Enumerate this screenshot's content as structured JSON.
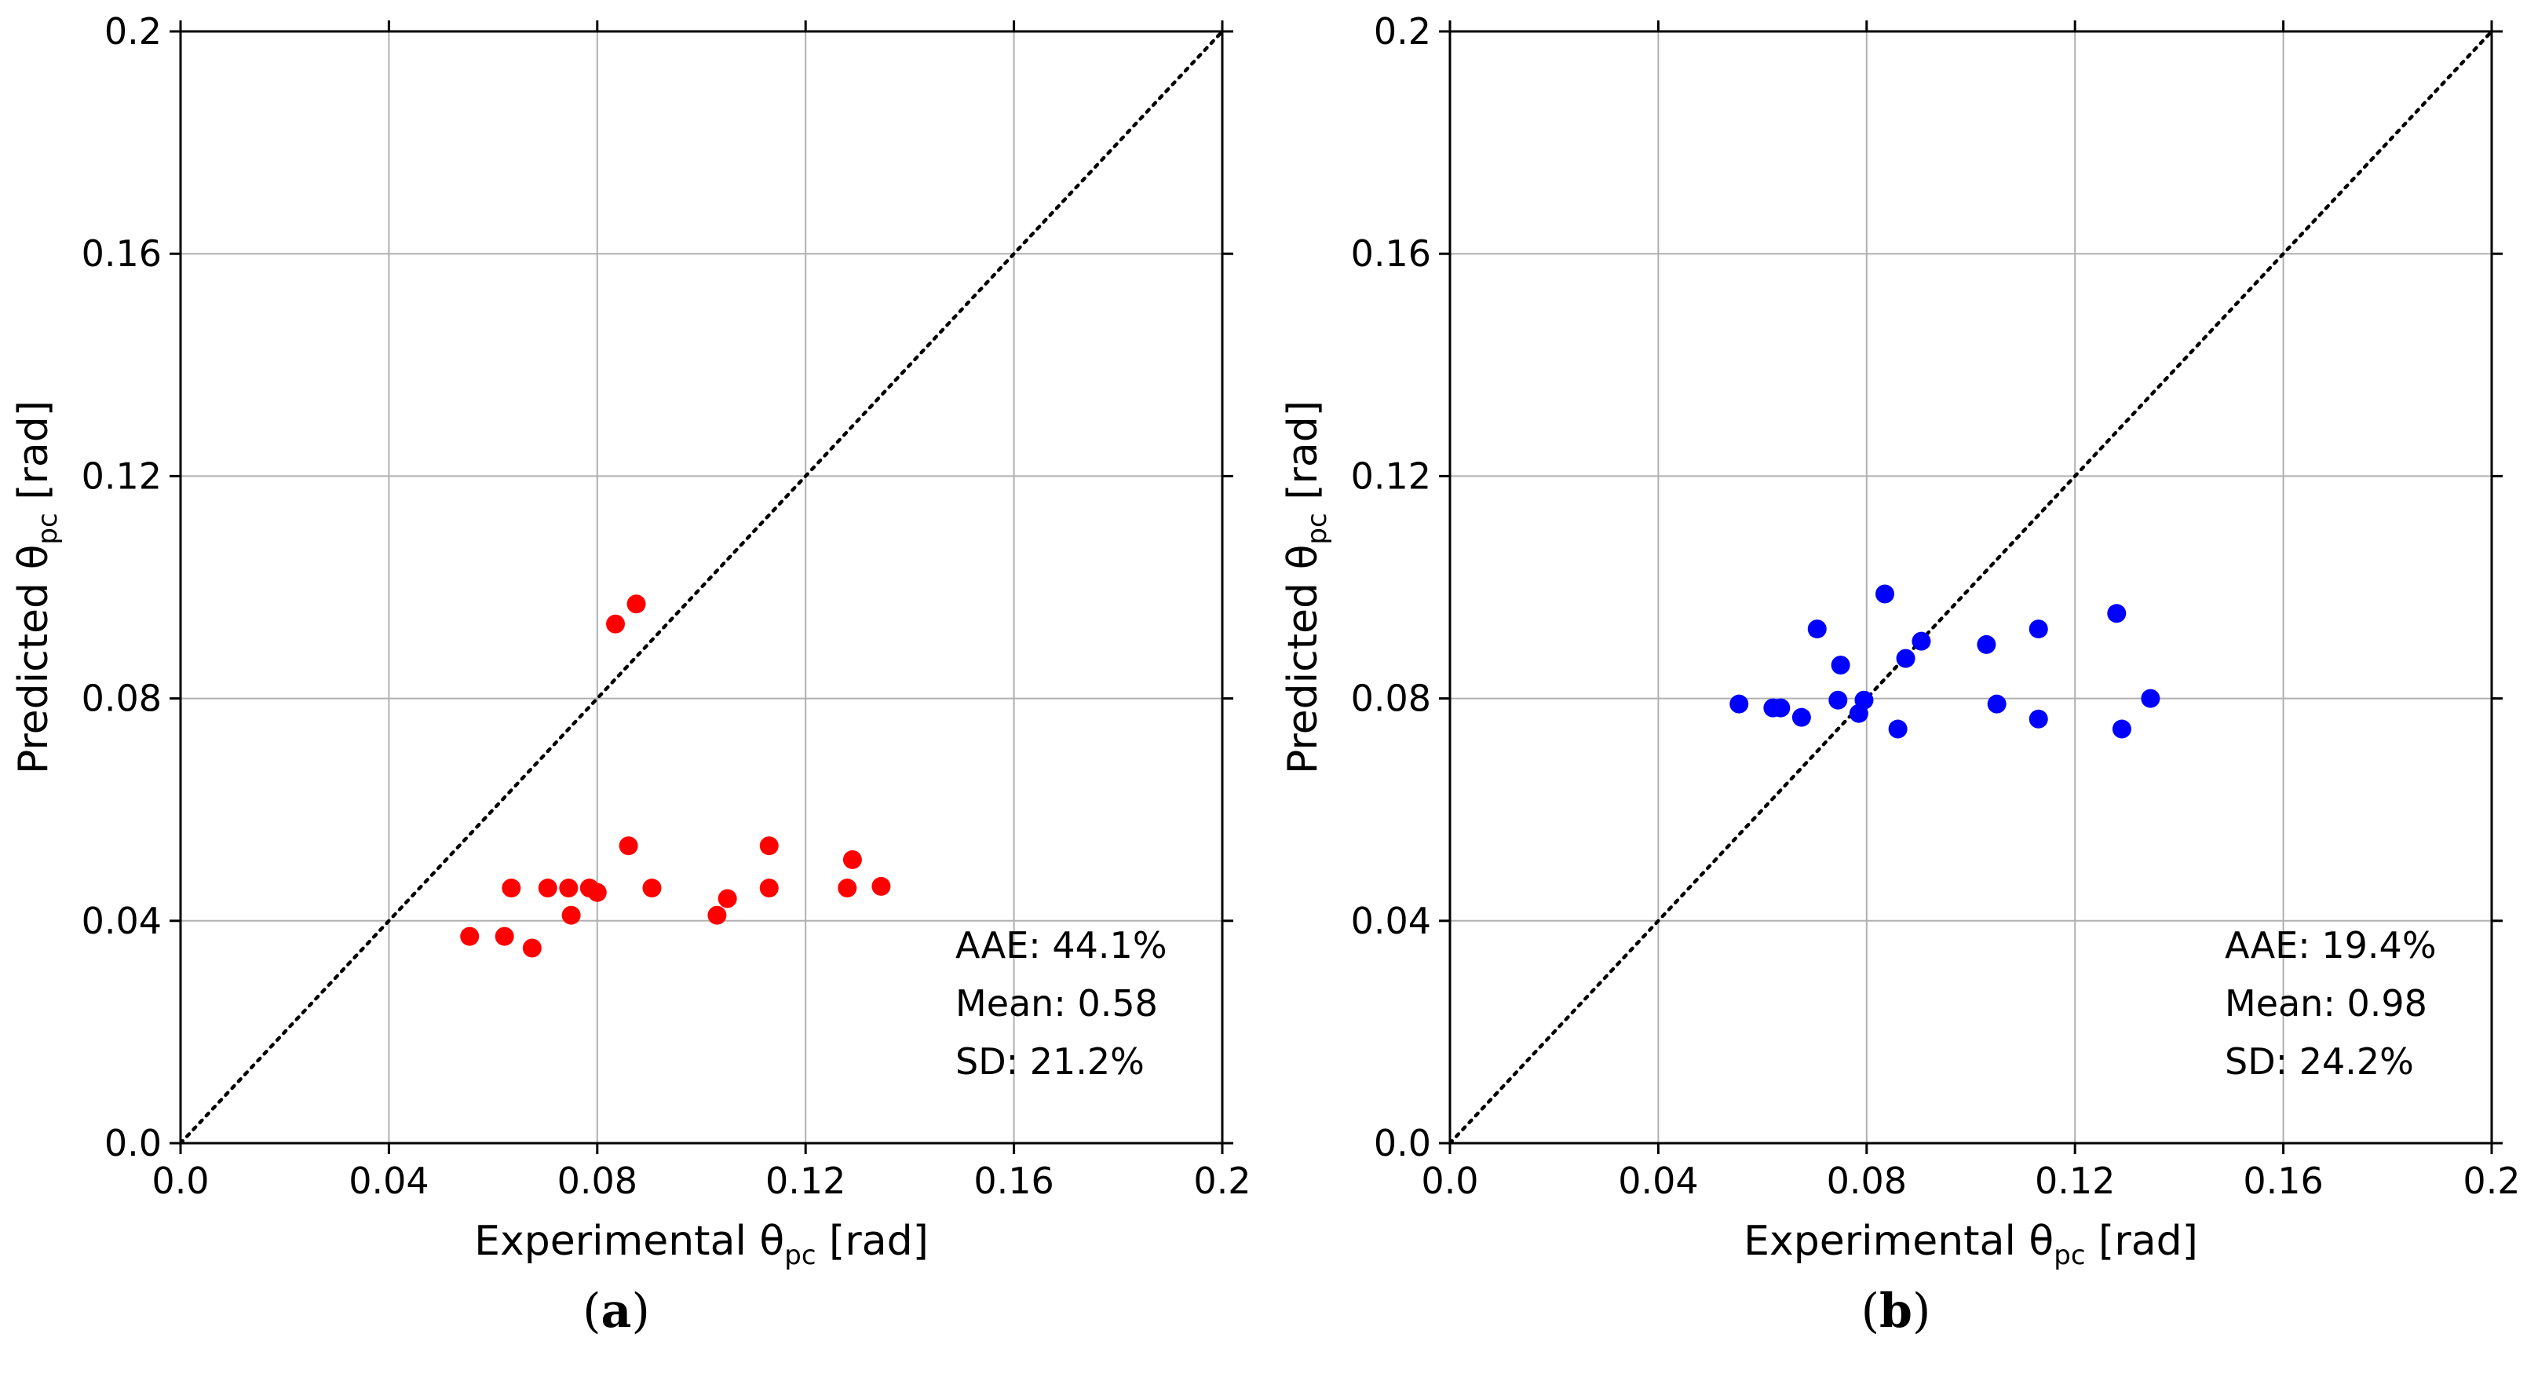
{
  "chart_data": [
    {
      "type": "scatter",
      "panel_label": "a",
      "xlabel": {
        "prefix": "Experimental θ",
        "sub": "pc",
        "suffix": " [rad]"
      },
      "ylabel": {
        "prefix": "Predicted θ",
        "sub": "pc",
        "suffix": " [rad]"
      },
      "xlim": [
        0,
        0.2
      ],
      "ylim": [
        0,
        0.2
      ],
      "xticks": [
        0.0,
        0.04,
        0.08,
        0.12,
        0.16,
        0.2
      ],
      "yticks": [
        0.0,
        0.04,
        0.08,
        0.12,
        0.16,
        0.2
      ],
      "xtick_labels": [
        "0.0",
        "0.04",
        "0.08",
        "0.12",
        "0.16",
        "0.2"
      ],
      "ytick_labels": [
        "0.0",
        "0.04",
        "0.08",
        "0.12",
        "0.16",
        "0.2"
      ],
      "grid": true,
      "reference_line": "y = x (dotted)",
      "marker_color": "#ff0000",
      "stats": [
        "AAE: 44.1%",
        "Mean: 0.58",
        "SD: 21.2%"
      ],
      "points": [
        {
          "x": 0.0555,
          "y": 0.0372
        },
        {
          "x": 0.0622,
          "y": 0.0372
        },
        {
          "x": 0.0635,
          "y": 0.0459
        },
        {
          "x": 0.0675,
          "y": 0.0351
        },
        {
          "x": 0.0705,
          "y": 0.0459
        },
        {
          "x": 0.0745,
          "y": 0.0459
        },
        {
          "x": 0.075,
          "y": 0.041
        },
        {
          "x": 0.0785,
          "y": 0.0459
        },
        {
          "x": 0.08,
          "y": 0.0451
        },
        {
          "x": 0.0835,
          "y": 0.0934
        },
        {
          "x": 0.086,
          "y": 0.0535
        },
        {
          "x": 0.0875,
          "y": 0.097
        },
        {
          "x": 0.0905,
          "y": 0.0459
        },
        {
          "x": 0.103,
          "y": 0.041
        },
        {
          "x": 0.105,
          "y": 0.044
        },
        {
          "x": 0.113,
          "y": 0.0535
        },
        {
          "x": 0.113,
          "y": 0.0459
        },
        {
          "x": 0.128,
          "y": 0.0459
        },
        {
          "x": 0.129,
          "y": 0.051
        },
        {
          "x": 0.1345,
          "y": 0.0462
        }
      ]
    },
    {
      "type": "scatter",
      "panel_label": "b",
      "xlabel": {
        "prefix": "Experimental θ",
        "sub": "pc",
        "suffix": " [rad]"
      },
      "ylabel": {
        "prefix": "Predicted θ",
        "sub": "pc",
        "suffix": " [rad]"
      },
      "xlim": [
        0,
        0.2
      ],
      "ylim": [
        0,
        0.2
      ],
      "xticks": [
        0.0,
        0.04,
        0.08,
        0.12,
        0.16,
        0.2
      ],
      "yticks": [
        0.0,
        0.04,
        0.08,
        0.12,
        0.16,
        0.2
      ],
      "xtick_labels": [
        "0.0",
        "0.04",
        "0.08",
        "0.12",
        "0.16",
        "0.2"
      ],
      "ytick_labels": [
        "0.0",
        "0.04",
        "0.08",
        "0.12",
        "0.16",
        "0.2"
      ],
      "grid": true,
      "reference_line": "y = x (dotted)",
      "marker_color": "#0000ff",
      "stats": [
        "AAE: 19.4%",
        "Mean: 0.98",
        "SD: 24.2%"
      ],
      "points": [
        {
          "x": 0.0555,
          "y": 0.079
        },
        {
          "x": 0.062,
          "y": 0.0783
        },
        {
          "x": 0.0635,
          "y": 0.0783
        },
        {
          "x": 0.0675,
          "y": 0.0766
        },
        {
          "x": 0.0705,
          "y": 0.0925
        },
        {
          "x": 0.0745,
          "y": 0.0797
        },
        {
          "x": 0.075,
          "y": 0.086
        },
        {
          "x": 0.0785,
          "y": 0.0773
        },
        {
          "x": 0.0795,
          "y": 0.0797
        },
        {
          "x": 0.0835,
          "y": 0.0988
        },
        {
          "x": 0.086,
          "y": 0.0745
        },
        {
          "x": 0.0875,
          "y": 0.0872
        },
        {
          "x": 0.0905,
          "y": 0.0903
        },
        {
          "x": 0.103,
          "y": 0.0897
        },
        {
          "x": 0.105,
          "y": 0.079
        },
        {
          "x": 0.113,
          "y": 0.0925
        },
        {
          "x": 0.113,
          "y": 0.0763
        },
        {
          "x": 0.128,
          "y": 0.0953
        },
        {
          "x": 0.129,
          "y": 0.0745
        },
        {
          "x": 0.1345,
          "y": 0.08
        }
      ]
    }
  ]
}
